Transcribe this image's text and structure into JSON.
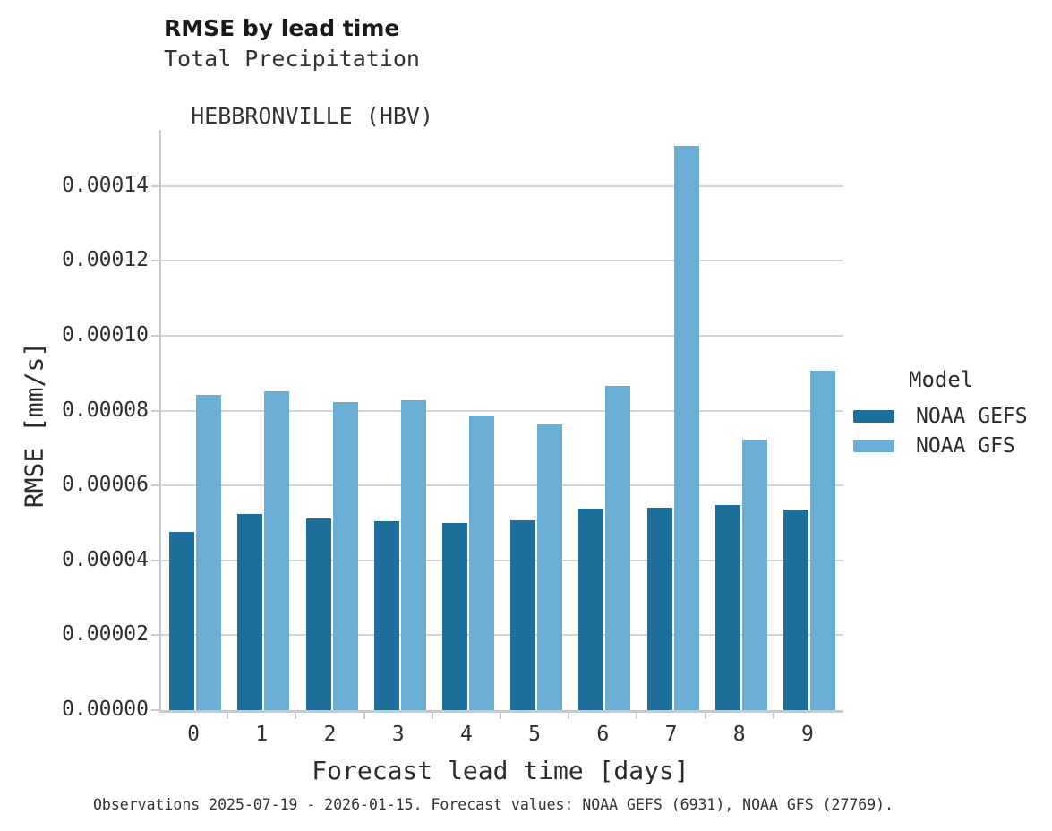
{
  "header": {
    "title": "RMSE by lead time",
    "subtitle_line1": "Total Precipitation",
    "subtitle_line2": "HEBBRONVILLE (HBV)"
  },
  "footer": {
    "note": "Observations 2025-07-19 - 2026-01-15. Forecast values: NOAA GEFS (6931), NOAA GFS (27769)."
  },
  "colors": {
    "gefs": "#1e6e9c",
    "gfs": "#6aaed6",
    "grid": "#d4d4d4",
    "axis": "#c9c9c9"
  },
  "chart_data": {
    "type": "bar",
    "title": "RMSE by lead time",
    "subtitle": [
      "Total Precipitation",
      "HEBBRONVILLE (HBV)"
    ],
    "xlabel": "Forecast lead time [days]",
    "ylabel": "RMSE [mm/s]",
    "categories": [
      "0",
      "1",
      "2",
      "3",
      "4",
      "5",
      "6",
      "7",
      "8",
      "9"
    ],
    "series": [
      {
        "name": "NOAA GEFS",
        "color": "#1e6e9c",
        "values": [
          4.75e-05,
          5.25e-05,
          5.12e-05,
          5.05e-05,
          5e-05,
          5.06e-05,
          5.37e-05,
          5.4e-05,
          5.47e-05,
          5.36e-05
        ]
      },
      {
        "name": "NOAA GFS",
        "color": "#6aaed6",
        "values": [
          8.43e-05,
          8.52e-05,
          8.24e-05,
          8.28e-05,
          7.88e-05,
          7.64e-05,
          8.66e-05,
          0.0001507,
          7.23e-05,
          9.07e-05
        ]
      }
    ],
    "ylim": [
      0,
      0.000155
    ],
    "yticks": [
      0,
      2e-05,
      4e-05,
      6e-05,
      8e-05,
      0.0001,
      0.00012,
      0.00014
    ],
    "ytick_labels": [
      "0.00000",
      "0.00002",
      "0.00004",
      "0.00006",
      "0.00008",
      "0.00010",
      "0.00012",
      "0.00014"
    ],
    "grid": "horizontal",
    "legend_title": "Model",
    "legend_position": "right"
  }
}
